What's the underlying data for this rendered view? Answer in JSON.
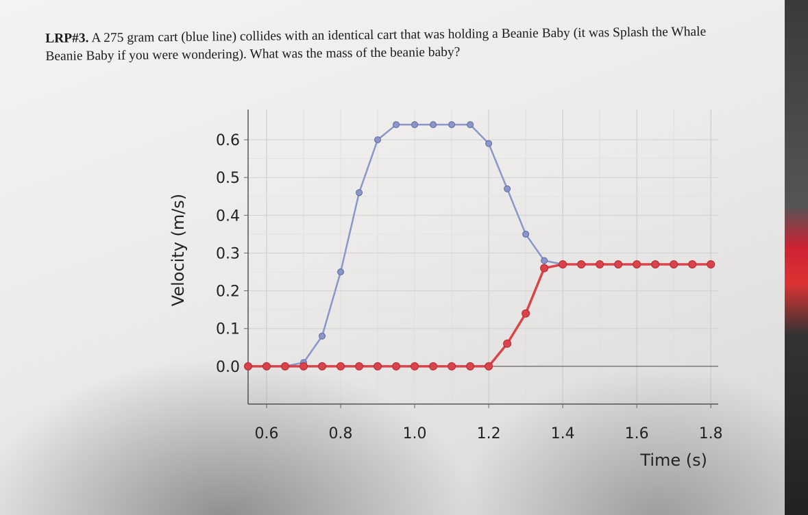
{
  "question": {
    "label": "LRP#3.",
    "text": "A 275 gram cart (blue line) collides with an identical cart that was holding a Beanie Baby (it was Splash the Whale Beanie Baby if you were wondering). What was the mass of the beanie baby?"
  },
  "chart_data": {
    "type": "line",
    "xlabel": "Time (s)",
    "ylabel": "Velocity (m/s)",
    "xlim": [
      0.55,
      1.82
    ],
    "ylim": [
      -0.1,
      0.68
    ],
    "xticks": [
      0.6,
      0.8,
      1.0,
      1.2,
      1.4,
      1.6,
      1.8
    ],
    "yticks": [
      0.0,
      0.1,
      0.2,
      0.3,
      0.4,
      0.5,
      0.6
    ],
    "xtick_labels": [
      "0.6",
      "0.8",
      "1.0",
      "1.2",
      "1.4",
      "1.6",
      "1.8"
    ],
    "ytick_labels": [
      "0.0",
      "0.1",
      "0.2",
      "0.3",
      "0.4",
      "0.5",
      "0.6"
    ],
    "grid": true,
    "series": [
      {
        "color": "#8a96c8",
        "x": [
          0.6,
          0.65,
          0.7,
          0.75,
          0.8,
          0.85,
          0.9,
          0.95,
          1.0,
          1.05,
          1.1,
          1.15,
          1.2,
          1.25,
          1.3,
          1.35,
          1.4
        ],
        "y": [
          0.0,
          0.0,
          0.01,
          0.08,
          0.25,
          0.46,
          0.6,
          0.64,
          0.64,
          0.64,
          0.64,
          0.64,
          0.59,
          0.47,
          0.35,
          0.28,
          0.27
        ]
      },
      {
        "color": "#d9434a",
        "x": [
          0.55,
          0.6,
          0.65,
          0.7,
          0.75,
          0.8,
          0.85,
          0.9,
          0.95,
          1.0,
          1.05,
          1.1,
          1.15,
          1.2,
          1.25,
          1.3,
          1.35,
          1.4,
          1.45,
          1.5,
          1.55,
          1.6,
          1.65,
          1.7,
          1.75,
          1.8
        ],
        "y": [
          0.0,
          0.0,
          0.0,
          0.0,
          0.0,
          0.0,
          0.0,
          0.0,
          0.0,
          0.0,
          0.0,
          0.0,
          0.0,
          0.0,
          0.06,
          0.14,
          0.26,
          0.27,
          0.27,
          0.27,
          0.27,
          0.27,
          0.27,
          0.27,
          0.27,
          0.27
        ]
      }
    ]
  }
}
